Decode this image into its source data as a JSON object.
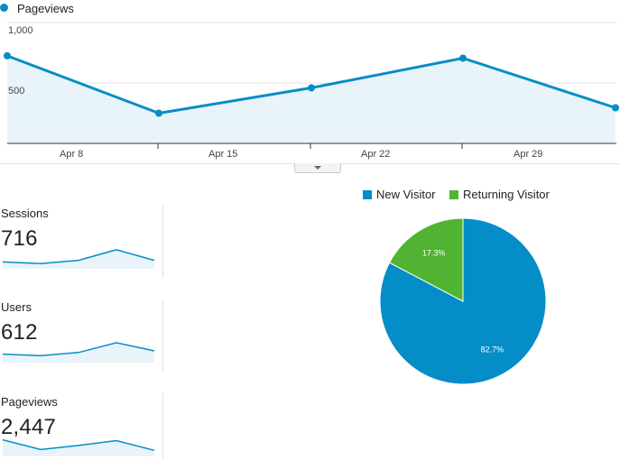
{
  "colors": {
    "primary": "#058dc7",
    "returning": "#50b432",
    "area": "#e8f4fa",
    "grid": "#e6e6e6"
  },
  "main_chart": {
    "legend_label": "Pageviews",
    "y_ticks": [
      "1,000",
      "500"
    ],
    "x_ticks": [
      "Apr 8",
      "Apr 15",
      "Apr 22",
      "Apr 29"
    ],
    "chart_data": {
      "type": "line",
      "series": [
        {
          "name": "Pageviews",
          "values": [
            725,
            250,
            460,
            705,
            295
          ]
        }
      ],
      "ylim": [
        0,
        1000
      ],
      "grid": true
    }
  },
  "metrics": [
    {
      "label": "Sessions",
      "value": "716",
      "spark": [
        0.2,
        0.1,
        0.3,
        0.95,
        0.3
      ]
    },
    {
      "label": "Users",
      "value": "612",
      "spark": [
        0.3,
        0.2,
        0.4,
        1.0,
        0.5
      ]
    },
    {
      "label": "Pageviews",
      "value": "2,447",
      "spark": [
        0.8,
        0.2,
        0.45,
        0.75,
        0.15
      ]
    }
  ],
  "pie": {
    "legend": [
      {
        "label": "New Visitor",
        "color": "#058dc7"
      },
      {
        "label": "Returning Visitor",
        "color": "#50b432"
      }
    ],
    "chart_data": {
      "type": "pie",
      "categories": [
        "New Visitor",
        "Returning Visitor"
      ],
      "values": [
        82.7,
        17.3
      ],
      "labels": [
        "82.7%",
        "17.3%"
      ]
    }
  }
}
